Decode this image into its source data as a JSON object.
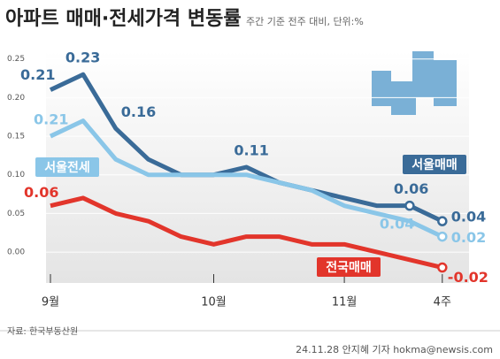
{
  "chart_data": {
    "type": "line",
    "title": "아파트 매매·전세가격 변동률",
    "subtitle": "주간 기준 전주 대비, 단위:%",
    "source": "자료: 한국부동산원",
    "credit": "24.11.28 안지혜 기자 hokma@newsis.com",
    "annotations": [
      "0.21"
    ],
    "categories": [
      "9월",
      null,
      null,
      null,
      null,
      "10월",
      null,
      null,
      null,
      "11월",
      null,
      null,
      "4주"
    ],
    "series": [
      {
        "name": "서울매매",
        "color": "#3a6b98",
        "values": [
          0.21,
          0.23,
          0.16,
          0.12,
          0.1,
          0.1,
          0.11,
          0.09,
          0.08,
          0.07,
          0.06,
          0.06,
          0.04
        ],
        "value_labels": [
          "0.21",
          "0.23",
          "0.16",
          null,
          null,
          null,
          "0.11",
          null,
          null,
          null,
          null,
          "0.06",
          "0.04"
        ]
      },
      {
        "name": "서울전세",
        "color": "#8ac6e8",
        "values": [
          0.15,
          0.17,
          0.12,
          0.1,
          0.1,
          0.1,
          0.1,
          0.09,
          0.08,
          0.06,
          0.05,
          0.04,
          0.02
        ],
        "value_labels": [
          null,
          null,
          null,
          null,
          null,
          null,
          null,
          null,
          null,
          null,
          null,
          "0.04",
          "0.02"
        ]
      },
      {
        "name": "전국매매",
        "color": "#e2352b",
        "values": [
          0.06,
          0.07,
          0.05,
          0.04,
          0.02,
          0.01,
          0.02,
          0.02,
          0.01,
          0.01,
          0.0,
          -0.01,
          -0.02
        ],
        "value_labels": [
          "0.06",
          null,
          null,
          null,
          null,
          null,
          null,
          null,
          null,
          null,
          null,
          null,
          "-0.02"
        ]
      }
    ],
    "ylim": [
      -0.04,
      0.26
    ],
    "yticks": [
      {
        "value": 0.0,
        "label": "0.00"
      },
      0.05,
      {
        "value": 0.1,
        "label": "0.10"
      },
      0.15,
      {
        "value": 0.2,
        "label": "0.20"
      },
      0.25
    ]
  }
}
